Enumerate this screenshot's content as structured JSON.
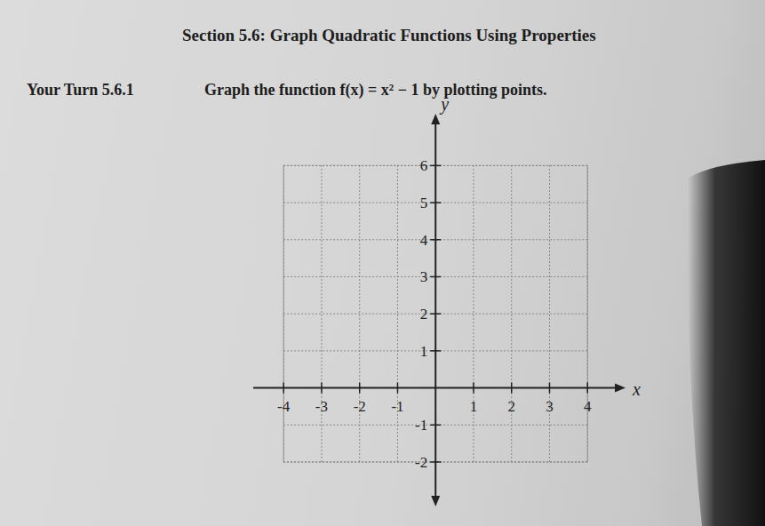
{
  "header": {
    "title": "Section 5.6: Graph Quadratic Functions Using Properties"
  },
  "exercise": {
    "label": "Your Turn 5.6.1",
    "prompt": "Graph the function f(x) = x² − 1 by plotting points."
  },
  "chart_data": {
    "type": "scatter",
    "x_label": "x",
    "y_label": "y",
    "xlim": [
      -4.8,
      5
    ],
    "ylim": [
      -3.2,
      7.4
    ],
    "xticks": [
      -4,
      -3,
      -2,
      -1,
      1,
      2,
      3,
      4
    ],
    "yticks": [
      -2,
      -1,
      1,
      2,
      3,
      4,
      5,
      6
    ],
    "grid": true
  }
}
